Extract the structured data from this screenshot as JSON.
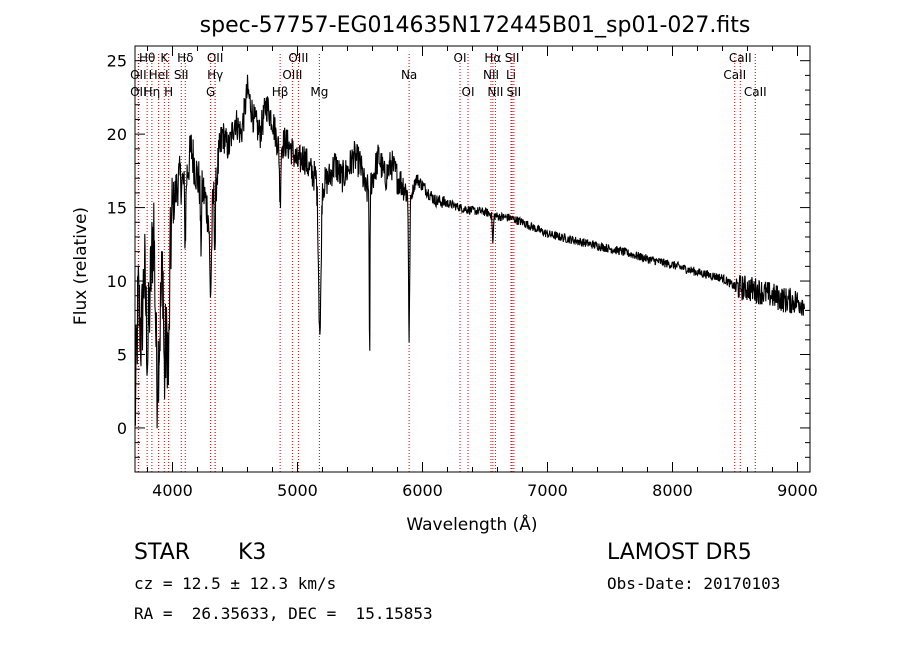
{
  "chart_data": {
    "type": "line",
    "title": "spec-57757-EG014635N172445B01_sp01-027.fits",
    "xlabel": "Wavelength (Å)",
    "ylabel": "Flux (relative)",
    "xlim": [
      3700,
      9100
    ],
    "ylim": [
      -3,
      26
    ],
    "x_ticks": [
      "4000",
      "5000",
      "6000",
      "7000",
      "8000",
      "9000"
    ],
    "y_ticks": [
      "0",
      "5",
      "10",
      "15",
      "20",
      "25"
    ],
    "grid": false,
    "line_color": "#000000",
    "marker_color": "#cc0000",
    "spectrum_anchors": [
      [
        3700,
        0.5
      ],
      [
        3725,
        9
      ],
      [
        3750,
        6
      ],
      [
        3775,
        11
      ],
      [
        3800,
        5
      ],
      [
        3825,
        10
      ],
      [
        3850,
        14
      ],
      [
        3875,
        3
      ],
      [
        3900,
        7
      ],
      [
        3925,
        12
      ],
      [
        3950,
        5
      ],
      [
        3970,
        10
      ],
      [
        4000,
        15
      ],
      [
        4050,
        17
      ],
      [
        4100,
        16.5
      ],
      [
        4150,
        19
      ],
      [
        4200,
        17
      ],
      [
        4250,
        16
      ],
      [
        4300,
        14
      ],
      [
        4350,
        17
      ],
      [
        4400,
        20
      ],
      [
        4450,
        19
      ],
      [
        4500,
        21
      ],
      [
        4550,
        20
      ],
      [
        4600,
        23
      ],
      [
        4650,
        21
      ],
      [
        4700,
        20
      ],
      [
        4750,
        22
      ],
      [
        4800,
        21
      ],
      [
        4850,
        19
      ],
      [
        4900,
        19.5
      ],
      [
        4950,
        19
      ],
      [
        5000,
        18
      ],
      [
        5050,
        18.5
      ],
      [
        5100,
        17.5
      ],
      [
        5150,
        17
      ],
      [
        5180,
        12
      ],
      [
        5200,
        16.5
      ],
      [
        5250,
        17
      ],
      [
        5300,
        18
      ],
      [
        5350,
        17
      ],
      [
        5400,
        17.5
      ],
      [
        5450,
        18.5
      ],
      [
        5500,
        18
      ],
      [
        5550,
        16
      ],
      [
        5600,
        17
      ],
      [
        5650,
        18.5
      ],
      [
        5700,
        17
      ],
      [
        5750,
        18
      ],
      [
        5800,
        17
      ],
      [
        5850,
        16.5
      ],
      [
        5900,
        15.5
      ],
      [
        5950,
        17
      ],
      [
        6000,
        16.5
      ],
      [
        6100,
        15.5
      ],
      [
        6200,
        15.3
      ],
      [
        6300,
        15
      ],
      [
        6400,
        14.8
      ],
      [
        6500,
        14.7
      ],
      [
        6600,
        14.4
      ],
      [
        6700,
        14.3
      ],
      [
        6800,
        14
      ],
      [
        6900,
        13.6
      ],
      [
        7000,
        13.2
      ],
      [
        7200,
        12.8
      ],
      [
        7400,
        12.4
      ],
      [
        7600,
        12
      ],
      [
        7800,
        11.5
      ],
      [
        8000,
        11.1
      ],
      [
        8200,
        10.6
      ],
      [
        8400,
        10.2
      ],
      [
        8500,
        9.6
      ],
      [
        8600,
        9.5
      ],
      [
        8700,
        9.3
      ],
      [
        8800,
        9.0
      ],
      [
        8900,
        8.7
      ],
      [
        9000,
        8.6
      ],
      [
        9050,
        8.5
      ]
    ],
    "absorption_features": [
      {
        "x": 3934,
        "depth": 6,
        "width": 8
      },
      {
        "x": 3969,
        "depth": 6,
        "width": 8
      },
      {
        "x": 4102,
        "depth": 4,
        "width": 6
      },
      {
        "x": 4227,
        "depth": 4,
        "width": 6
      },
      {
        "x": 4305,
        "depth": 5,
        "width": 10
      },
      {
        "x": 4340,
        "depth": 4,
        "width": 6
      },
      {
        "x": 4861,
        "depth": 4,
        "width": 6
      },
      {
        "x": 5172,
        "depth": 4,
        "width": 8
      },
      {
        "x": 5183,
        "depth": 5,
        "width": 8
      },
      {
        "x": 5577,
        "depth": 13,
        "width": 4
      },
      {
        "x": 5893,
        "depth": 10,
        "width": 6
      },
      {
        "x": 6563,
        "depth": 2,
        "width": 6
      }
    ],
    "line_markers": [
      {
        "label": "Hθ",
        "x": 3797,
        "row": 1
      },
      {
        "label": "K",
        "x": 3934,
        "row": 1
      },
      {
        "label": "Hδ",
        "x": 4102,
        "row": 1
      },
      {
        "label": "OII",
        "x": 4341,
        "row": 1
      },
      {
        "label": "OIII",
        "x": 5007,
        "row": 1
      },
      {
        "label": "OI",
        "x": 6300,
        "row": 1
      },
      {
        "label": "Hα",
        "x": 6563,
        "row": 1
      },
      {
        "label": "SII",
        "x": 6717,
        "row": 1
      },
      {
        "label": "CaII",
        "x": 8542,
        "row": 1
      },
      {
        "label": "OII",
        "x": 3727,
        "row": 2
      },
      {
        "label": "HeI",
        "x": 3889,
        "row": 2
      },
      {
        "label": "SII",
        "x": 4070,
        "row": 2
      },
      {
        "label": "Hγ",
        "x": 4341,
        "row": 2
      },
      {
        "label": "OIII",
        "x": 4959,
        "row": 2
      },
      {
        "label": "Na",
        "x": 5893,
        "row": 2
      },
      {
        "label": "NII",
        "x": 6548,
        "row": 2
      },
      {
        "label": "Li",
        "x": 6708,
        "row": 2
      },
      {
        "label": "CaII",
        "x": 8498,
        "row": 2
      },
      {
        "label": "OII",
        "x": 3727,
        "row": 3
      },
      {
        "label": "Hη",
        "x": 3835,
        "row": 3
      },
      {
        "label": "H",
        "x": 3969,
        "row": 3
      },
      {
        "label": "G",
        "x": 4305,
        "row": 3
      },
      {
        "label": "Hβ",
        "x": 4861,
        "row": 3
      },
      {
        "label": "Mg",
        "x": 5175,
        "row": 3
      },
      {
        "label": "OI",
        "x": 6364,
        "row": 3
      },
      {
        "label": "NII",
        "x": 6583,
        "row": 3
      },
      {
        "label": "SII",
        "x": 6731,
        "row": 3
      },
      {
        "label": "CaII",
        "x": 8662,
        "row": 3
      }
    ]
  },
  "info": {
    "object_class": "STAR",
    "subclass": "K3",
    "survey": "LAMOST DR5",
    "cz": "cz = 12.5 ± 12.3 km/s",
    "obs_date": "Obs-Date: 20170103",
    "coords": "RA =  26.35633, DEC =  15.15853"
  }
}
